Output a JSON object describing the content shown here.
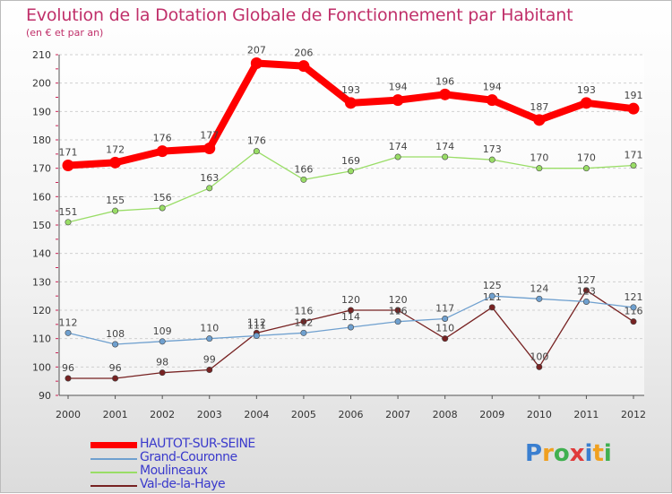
{
  "header": {
    "title": "Evolution de la Dotation Globale de Fonctionnement par Habitant",
    "subtitle": "(en € et par an)"
  },
  "chart_data": {
    "type": "line",
    "title": "Evolution de la Dotation Globale de Fonctionnement par Habitant",
    "subtitle": "(en € et par an)",
    "xlabel": "",
    "ylabel": "",
    "x": [
      "2000",
      "2001",
      "2002",
      "2003",
      "2004",
      "2005",
      "2006",
      "2007",
      "2008",
      "2009",
      "2010",
      "2011",
      "2012"
    ],
    "ylim": [
      90,
      210
    ],
    "yticks": [
      90,
      100,
      110,
      120,
      130,
      140,
      150,
      160,
      170,
      180,
      190,
      200,
      210
    ],
    "grid": "horizontal dashed",
    "legend_position": "bottom-left",
    "series": [
      {
        "name": "HAUTOT-SUR-SEINE",
        "color": "#ff0000",
        "values": [
          171,
          172,
          176,
          177,
          207,
          206,
          193,
          194,
          196,
          194,
          187,
          193,
          191
        ]
      },
      {
        "name": "Grand-Couronne",
        "color": "#6fa0cf",
        "values": [
          112,
          108,
          109,
          110,
          111,
          112,
          114,
          116,
          117,
          125,
          124,
          123,
          121
        ]
      },
      {
        "name": "Moulineaux",
        "color": "#99dd66",
        "values": [
          151,
          155,
          156,
          163,
          176,
          166,
          169,
          174,
          174,
          173,
          170,
          170,
          171
        ]
      },
      {
        "name": "Val-de-la-Haye",
        "color": "#772222",
        "values": [
          96,
          96,
          98,
          99,
          112,
          116,
          120,
          120,
          110,
          121,
          100,
          127,
          116
        ]
      }
    ]
  },
  "logo": {
    "text": "Proxiti",
    "colors": [
      "#3a7fd0",
      "#f0a020",
      "#40b050",
      "#e03a3a",
      "#3a7fd0",
      "#f0a020",
      "#40b050"
    ]
  }
}
